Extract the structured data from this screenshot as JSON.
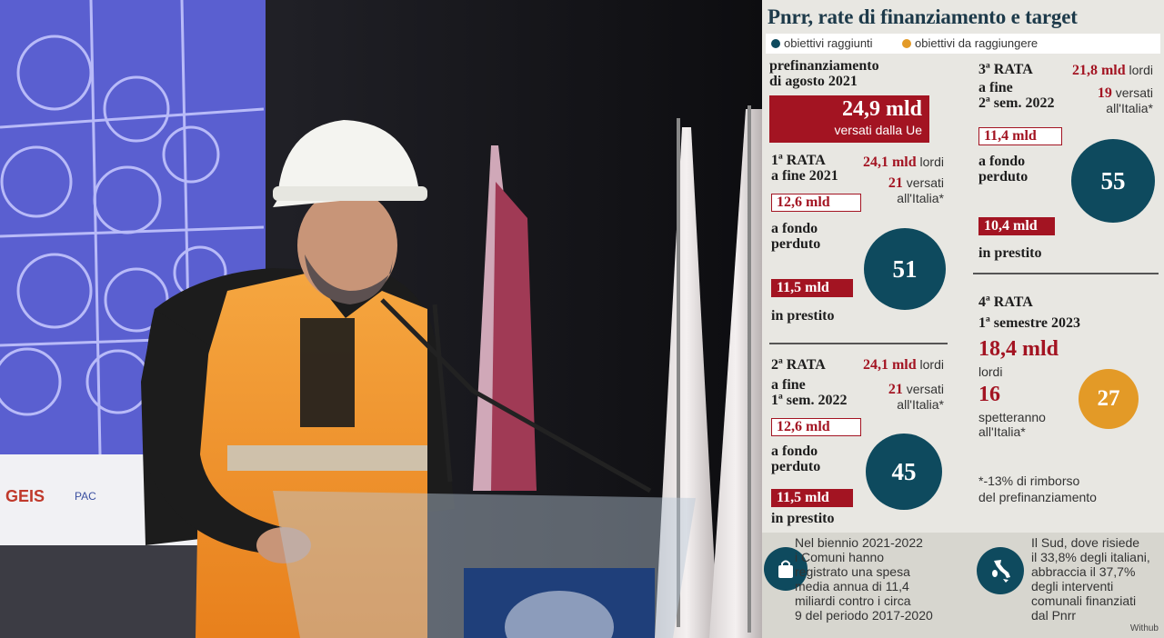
{
  "colors": {
    "teal": "#0e4a5e",
    "orange": "#e39a27",
    "red": "#a31422",
    "panel_bg": "#e8e7e2"
  },
  "title": "Pnrr, rate di finanziamento e target",
  "legend": {
    "reached": "obiettivi raggiunti",
    "to_reach": "obiettivi da raggiungere"
  },
  "prefin": {
    "line1": "prefinanziamento",
    "line2": "di agosto 2021",
    "amount": "24,9 mld",
    "note": "versati dalla Ue"
  },
  "rata1": {
    "t1": "1ª RATA",
    "t2": "a fine 2021",
    "gross": "24,1 mld",
    "gross_label": "lordi",
    "paid": "21",
    "paid_label": "versati",
    "paid_label2": "all'Italia*",
    "grant": "12,6 mld",
    "grant_l1": "a fondo",
    "grant_l2": "perduto",
    "loan": "11,5 mld",
    "loan_label": "in prestito",
    "targets": "51"
  },
  "rata2": {
    "t1": "2ª RATA",
    "t2": "a fine",
    "t3": "1ª sem. 2022",
    "gross": "24,1 mld",
    "gross_label": "lordi",
    "paid": "21",
    "paid_label": "versati",
    "paid_label2": "all'Italia*",
    "grant": "12,6 mld",
    "grant_l1": "a fondo",
    "grant_l2": "perduto",
    "loan": "11,5 mld",
    "loan_label": "in prestito",
    "targets": "45"
  },
  "rata3": {
    "t1": "3ª RATA",
    "t2": "a fine",
    "t3": "2ª sem. 2022",
    "gross": "21,8 mld",
    "gross_label": "lordi",
    "paid": "19",
    "paid_label": "versati",
    "paid_label2": "all'Italia*",
    "grant": "11,4 mld",
    "grant_l1": "a fondo",
    "grant_l2": "perduto",
    "loan": "10,4 mld",
    "loan_label": "in prestito",
    "targets": "55"
  },
  "rata4": {
    "t1": "4ª RATA",
    "t2": "1ª semestre 2023",
    "gross": "18,4 mld",
    "gross_label": "lordi",
    "paid": "16",
    "paid_label": "spetteranno",
    "paid_label2": "all'Italia*",
    "targets": "27"
  },
  "footnote": {
    "l1": "*-13% di rimborso",
    "l2": "del prefinanziamento"
  },
  "bottom": {
    "left_icon": "shopping-bag-icon",
    "left_lines": [
      "Nel biennio 2021-2022",
      "i Comuni hanno",
      "registrato una spesa",
      "media annua di 11,4",
      "miliardi contro i circa",
      "9 del periodo 2017-2020"
    ],
    "right_icon": "italy-map-icon",
    "right_lines": [
      "Il Sud, dove risiede",
      "il 33,8% degli italiani,",
      "abbraccia il 37,7%",
      "degli interventi",
      "comunali finanziati",
      "dal Pnrr"
    ],
    "credit": "Withub"
  },
  "photo": {
    "description_icon": "speaker-photo",
    "logo_text": "GEIS",
    "logo2_text": "PAC"
  }
}
